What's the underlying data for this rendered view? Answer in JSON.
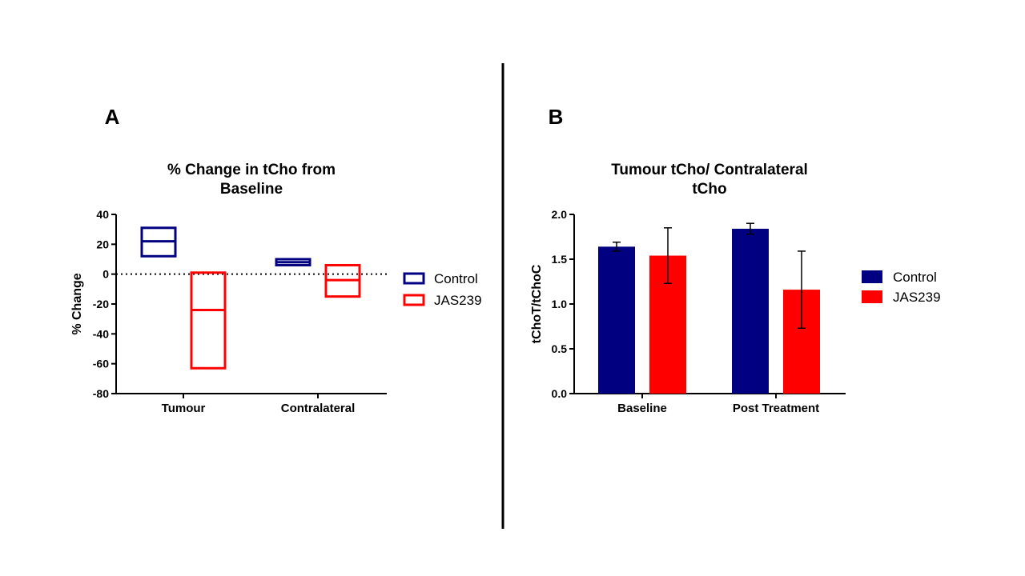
{
  "colors": {
    "control": "#000080",
    "jas239": "#ff0000",
    "axis": "#000000",
    "divider": "#000000"
  },
  "panels": {
    "a_label": "A",
    "b_label": "B"
  },
  "chart_data": [
    {
      "id": "panel-a",
      "type": "floating-bar",
      "title_lines": [
        "% Change in tCho from",
        "Baseline"
      ],
      "ylabel": "% Change",
      "xlabel": "",
      "ylim": [
        -80,
        40
      ],
      "yticks": [
        40,
        20,
        0,
        -20,
        -40,
        -60,
        -80
      ],
      "reference_line": 0,
      "categories": [
        "Tumour",
        "Contralateral"
      ],
      "series": [
        {
          "name": "Control",
          "color": "#000080",
          "values": [
            {
              "min": 12,
              "mean": 22,
              "max": 31
            },
            {
              "min": 6,
              "mean": 8,
              "max": 10
            }
          ]
        },
        {
          "name": "JAS239",
          "color": "#ff0000",
          "values": [
            {
              "min": -63,
              "mean": -24,
              "max": 1
            },
            {
              "min": -15,
              "mean": -4,
              "max": 6
            }
          ]
        }
      ],
      "legend": [
        {
          "label": "Control",
          "color": "#000080"
        },
        {
          "label": "JAS239",
          "color": "#ff0000"
        }
      ],
      "legend_position": "right"
    },
    {
      "id": "panel-b",
      "type": "bar",
      "title_lines": [
        "Tumour tCho/ Contralateral",
        "tCho"
      ],
      "ylabel": "tChoT/tChoC",
      "xlabel": "",
      "ylim": [
        0,
        2.0
      ],
      "yticks": [
        "2.0",
        "1.5",
        "1.0",
        "0.5",
        "0.0"
      ],
      "categories": [
        "Baseline",
        "Post Treatment"
      ],
      "series": [
        {
          "name": "Control",
          "color": "#000080",
          "values": [
            1.64,
            1.84
          ],
          "errors": [
            0.05,
            0.06
          ]
        },
        {
          "name": "JAS239",
          "color": "#ff0000",
          "values": [
            1.54,
            1.16
          ],
          "errors": [
            0.31,
            0.43
          ]
        }
      ],
      "legend": [
        {
          "label": "Control",
          "color": "#000080"
        },
        {
          "label": "JAS239",
          "color": "#ff0000"
        }
      ],
      "legend_position": "right"
    }
  ]
}
